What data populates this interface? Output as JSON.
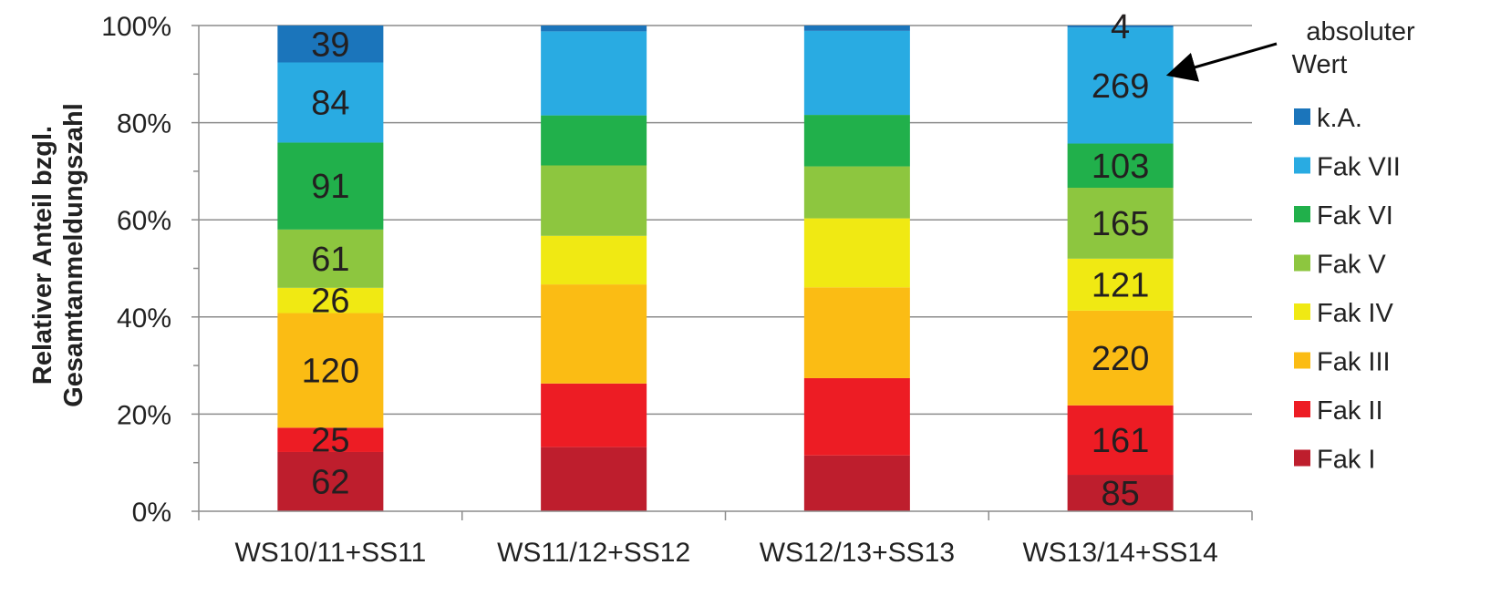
{
  "chart_data": {
    "type": "bar",
    "stacked": true,
    "normalized": true,
    "ylabel_line1": "Relativer Anteil bzgl.",
    "ylabel_line2": "Gesamtanmeldungszahl",
    "ylim": [
      0,
      100
    ],
    "yticks": [
      "0%",
      "20%",
      "40%",
      "60%",
      "80%",
      "100%"
    ],
    "categories": [
      "WS10/11+SS11",
      "WS11/12+SS12",
      "WS12/13+SS13",
      "WS13/14+SS14"
    ],
    "series": [
      {
        "name": "Fak I",
        "color": "#be1e2d",
        "values": [
          12.2,
          13.2,
          11.5,
          7.5
        ],
        "labels": [
          "62",
          "",
          "",
          "85"
        ]
      },
      {
        "name": "Fak II",
        "color": "#ed1c24",
        "values": [
          5.0,
          13.1,
          15.9,
          14.3
        ],
        "labels": [
          "25",
          "",
          "",
          "161"
        ]
      },
      {
        "name": "Fak III",
        "color": "#fbbc14",
        "values": [
          23.6,
          20.4,
          18.7,
          19.5
        ],
        "labels": [
          "120",
          "",
          "",
          "220"
        ]
      },
      {
        "name": "Fak IV",
        "color": "#f0e913",
        "values": [
          5.2,
          10.0,
          14.2,
          10.7
        ],
        "labels": [
          "26",
          "",
          "",
          "121"
        ]
      },
      {
        "name": "Fak V",
        "color": "#8dc63f",
        "values": [
          12.0,
          14.5,
          10.7,
          14.6
        ],
        "labels": [
          "61",
          "",
          "",
          "165"
        ]
      },
      {
        "name": "Fak VI",
        "color": "#21b04b",
        "values": [
          17.9,
          10.3,
          10.6,
          9.1
        ],
        "labels": [
          "91",
          "",
          "",
          "103"
        ]
      },
      {
        "name": "Fak VII",
        "color": "#29abe2",
        "values": [
          16.5,
          17.3,
          17.3,
          23.9
        ],
        "labels": [
          "84",
          "",
          "",
          "269"
        ]
      },
      {
        "name": "k.A.",
        "color": "#1b75bb",
        "values": [
          7.6,
          1.2,
          1.1,
          0.4
        ],
        "labels": [
          "39",
          "",
          "",
          "4"
        ]
      }
    ],
    "annotation": {
      "line1": "absoluter",
      "line2": "Wert"
    },
    "legend_position": "right",
    "grid": true
  }
}
